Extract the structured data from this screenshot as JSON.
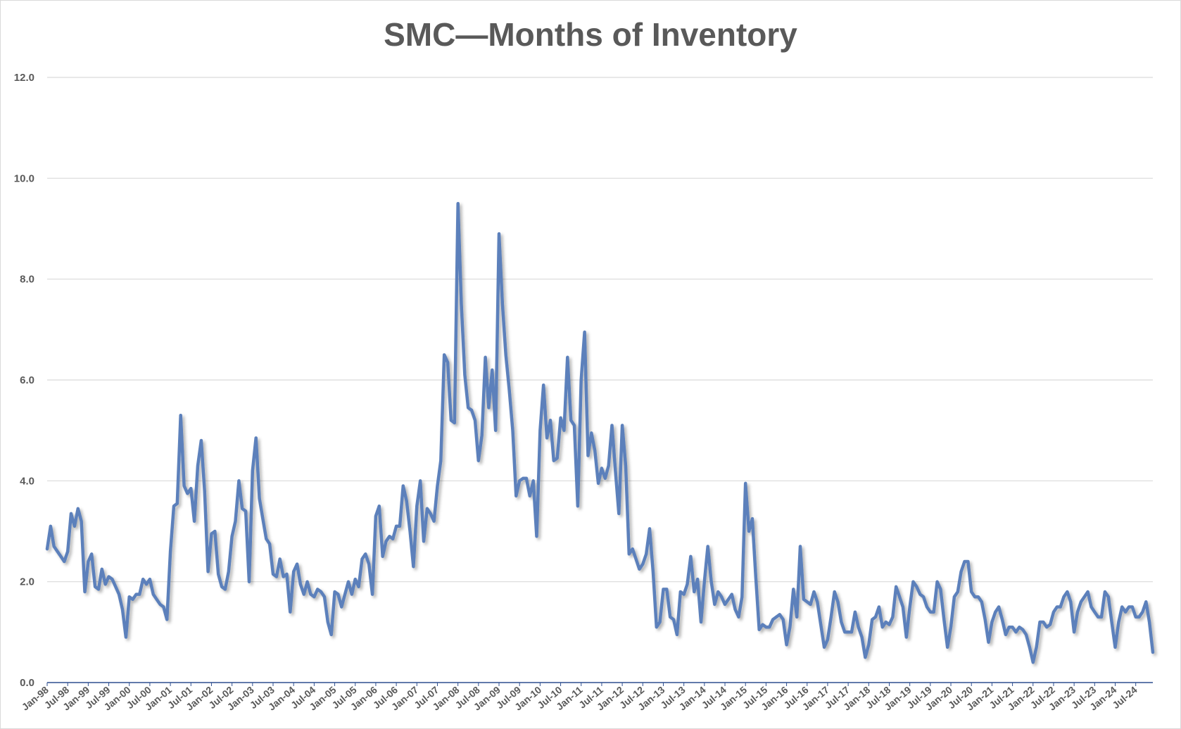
{
  "chart_data": {
    "type": "line",
    "title": "SMC—Months of Inventory",
    "xlabel": "",
    "ylabel": "",
    "ylim": [
      0,
      12
    ],
    "yticks": [
      "0.0",
      "2.0",
      "4.0",
      "6.0",
      "8.0",
      "10.0",
      "12.0"
    ],
    "grid": true,
    "legend": "none",
    "line_color": "#5b80bb",
    "start": "Jan-98",
    "frequency": "monthly",
    "xtick_labels": [
      "Jan-98",
      "Jul-98",
      "Jan-99",
      "Jul-99",
      "Jan-00",
      "Jul-00",
      "Jan-01",
      "Jul-01",
      "Jan-02",
      "Jul-02",
      "Jan-03",
      "Jul-03",
      "Jan-04",
      "Jul-04",
      "Jan-05",
      "Jul-05",
      "Jan-06",
      "Jul-06",
      "Jan-07",
      "Jul-07",
      "Jan-08",
      "Jul-08",
      "Jan-09",
      "Jul-09",
      "Jan-10",
      "Jul-10",
      "Jan-11",
      "Jul-11",
      "Jan-12",
      "Jul-12",
      "Jan-13",
      "Jul-13",
      "Jan-14",
      "Jul-14",
      "Jan-15",
      "Jul-15",
      "Jan-16",
      "Jul-16",
      "Jan-17",
      "Jul-17",
      "Jan-18",
      "Jul-18",
      "Jan-19",
      "Jul-19",
      "Jan-20",
      "Jul-20",
      "Jan-21",
      "Jul-21",
      "Jan-22",
      "Jul-22",
      "Jan-23",
      "Jul-23",
      "Jan-24",
      "Jul-24"
    ],
    "series": [
      {
        "name": "Months of Inventory",
        "values": [
          2.65,
          3.1,
          2.7,
          2.6,
          2.5,
          2.4,
          2.6,
          3.35,
          3.1,
          3.45,
          3.2,
          1.8,
          2.4,
          2.55,
          1.9,
          1.85,
          2.25,
          1.95,
          2.1,
          2.05,
          1.9,
          1.75,
          1.45,
          0.9,
          1.7,
          1.65,
          1.75,
          1.75,
          2.05,
          1.95,
          2.05,
          1.75,
          1.65,
          1.55,
          1.5,
          1.25,
          2.6,
          3.5,
          3.55,
          5.3,
          3.9,
          3.75,
          3.85,
          3.2,
          4.3,
          4.8,
          3.8,
          2.2,
          2.95,
          3.0,
          2.15,
          1.9,
          1.85,
          2.2,
          2.9,
          3.2,
          4.0,
          3.45,
          3.4,
          2.0,
          4.2,
          4.85,
          3.65,
          3.25,
          2.85,
          2.75,
          2.15,
          2.1,
          2.45,
          2.1,
          2.15,
          1.4,
          2.2,
          2.35,
          1.95,
          1.75,
          2.0,
          1.75,
          1.7,
          1.85,
          1.8,
          1.7,
          1.2,
          0.95,
          1.8,
          1.75,
          1.5,
          1.75,
          2.0,
          1.75,
          2.05,
          1.9,
          2.45,
          2.55,
          2.35,
          1.75,
          3.3,
          3.5,
          2.5,
          2.8,
          2.9,
          2.85,
          3.1,
          3.1,
          3.9,
          3.6,
          3.0,
          2.3,
          3.5,
          4.0,
          2.8,
          3.45,
          3.35,
          3.2,
          3.9,
          4.4,
          6.5,
          6.35,
          5.2,
          5.15,
          9.5,
          7.5,
          6.1,
          5.45,
          5.4,
          5.2,
          4.4,
          4.9,
          6.45,
          5.45,
          6.2,
          5.0,
          8.9,
          7.5,
          6.5,
          5.8,
          5.0,
          3.7,
          4.0,
          4.05,
          4.05,
          3.7,
          4.0,
          2.9,
          5.0,
          5.9,
          4.85,
          5.2,
          4.4,
          4.45,
          5.25,
          5.0,
          6.45,
          5.2,
          5.1,
          3.5,
          6.0,
          6.95,
          4.5,
          4.95,
          4.6,
          3.95,
          4.25,
          4.05,
          4.3,
          5.1,
          4.2,
          3.35,
          5.1,
          4.3,
          2.55,
          2.65,
          2.45,
          2.25,
          2.35,
          2.55,
          3.05,
          2.2,
          1.1,
          1.2,
          1.85,
          1.85,
          1.3,
          1.25,
          0.95,
          1.8,
          1.75,
          1.95,
          2.5,
          1.8,
          2.05,
          1.2,
          2.0,
          2.7,
          2.0,
          1.55,
          1.8,
          1.7,
          1.55,
          1.65,
          1.75,
          1.45,
          1.3,
          1.7,
          3.95,
          3.0,
          3.25,
          2.1,
          1.05,
          1.15,
          1.1,
          1.1,
          1.25,
          1.3,
          1.35,
          1.25,
          0.75,
          1.1,
          1.85,
          1.3,
          2.7,
          1.65,
          1.6,
          1.55,
          1.8,
          1.6,
          1.15,
          0.7,
          0.85,
          1.3,
          1.8,
          1.6,
          1.2,
          1.0,
          1.0,
          1.0,
          1.4,
          1.1,
          0.9,
          0.5,
          0.75,
          1.25,
          1.3,
          1.5,
          1.1,
          1.2,
          1.15,
          1.3,
          1.9,
          1.7,
          1.5,
          0.9,
          1.5,
          2.0,
          1.9,
          1.75,
          1.7,
          1.5,
          1.4,
          1.4,
          2.0,
          1.85,
          1.25,
          0.7,
          1.1,
          1.7,
          1.8,
          2.2,
          2.4,
          2.4,
          1.8,
          1.7,
          1.7,
          1.6,
          1.25,
          0.8,
          1.2,
          1.4,
          1.5,
          1.25,
          0.95,
          1.1,
          1.1,
          1.0,
          1.1,
          1.05,
          0.95,
          0.7,
          0.4,
          0.7,
          1.2,
          1.2,
          1.1,
          1.15,
          1.4,
          1.5,
          1.5,
          1.7,
          1.8,
          1.6,
          1.0,
          1.4,
          1.6,
          1.7,
          1.8,
          1.5,
          1.4,
          1.3,
          1.3,
          1.8,
          1.7,
          1.2,
          0.7,
          1.2,
          1.5,
          1.4,
          1.5,
          1.5,
          1.3,
          1.3,
          1.4,
          1.6,
          1.2,
          0.6
        ]
      }
    ]
  }
}
